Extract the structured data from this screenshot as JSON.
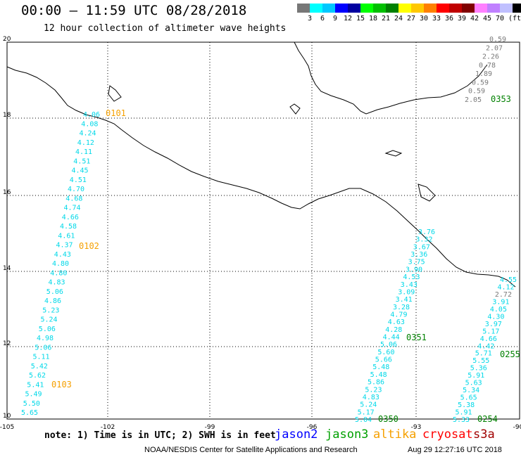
{
  "header": {
    "title": "00:00 – 11:59 UTC 08/28/2018",
    "subtitle": "12 hour collection of altimeter wave heights"
  },
  "legend": {
    "colors": [
      "#777777",
      "#00ffff",
      "#00c8ff",
      "#0000ff",
      "#0000a0",
      "#00ff00",
      "#00c000",
      "#008000",
      "#ffff00",
      "#ffc800",
      "#ff8000",
      "#ff0000",
      "#c00000",
      "#800000",
      "#ff80ff",
      "#c080ff",
      "#c0c0ff",
      "#000000"
    ],
    "labels": [
      "3",
      "6",
      "9",
      "12",
      "15",
      "18",
      "21",
      "24",
      "27",
      "30",
      "33",
      "36",
      "39",
      "42",
      "45",
      "70"
    ],
    "unit": "(ft)"
  },
  "axes": {
    "x_ticks": [
      "-105",
      "-102",
      "-99",
      "-96",
      "-93",
      "-90"
    ],
    "y_ticks": [
      "20",
      "18",
      "16",
      "14",
      "12",
      "10"
    ]
  },
  "tracks": [
    {
      "id": "0101",
      "label": "0101",
      "color": "#f5a000",
      "values": [
        "4.06",
        "4.08",
        "4.24",
        "4.12",
        "4.11",
        "4.51",
        "4.45",
        "4.51",
        "4.70",
        "4.68",
        "4.74",
        "4.66",
        "4.58",
        "4.61",
        "4.37",
        "4.43",
        "4.80",
        "4.80",
        "4.83",
        "5.06",
        "4.86",
        "5.23",
        "5.24",
        "5.06",
        "4.98",
        "5.06",
        "5.11",
        "5.42",
        "5.62",
        "5.41",
        "5.49",
        "5.50",
        "5.65"
      ]
    },
    {
      "id": "0102",
      "label": "0102",
      "color": "#f5a000"
    },
    {
      "id": "0103",
      "label": "0103",
      "color": "#f5a000"
    },
    {
      "id": "0351",
      "label": "0351",
      "color": "#008000",
      "values": [
        "3.76",
        "3.32",
        "3.67",
        "3.36",
        "3.75",
        "3.90",
        "4.53",
        "3.43",
        "3.09",
        "3.41",
        "3.28",
        "4.79",
        "4.63",
        "4.28",
        "4.44",
        "5.06",
        "5.60",
        "5.66",
        "5.48",
        "5.48",
        "5.86",
        "5.23",
        "4.83",
        "5.24",
        "5.17",
        "5.04"
      ]
    },
    {
      "id": "0350",
      "label": "0350",
      "color": "#008000"
    },
    {
      "id": "0255",
      "label": "0255",
      "color": "#008000",
      "values": [
        "4.55",
        "4.12",
        "2.72",
        "3.91",
        "4.05",
        "4.30",
        "3.97",
        "5.17",
        "4.66",
        "4.42",
        "5.71",
        "5.55",
        "5.36",
        "5.91",
        "5.63",
        "5.34",
        "5.65",
        "5.38",
        "5.91",
        "5.33"
      ]
    },
    {
      "id": "0254",
      "label": "0254",
      "color": "#008000"
    },
    {
      "id": "0353",
      "label": "0353",
      "color": "#008000",
      "values": [
        "0.59",
        "2.07",
        "2.26",
        "0.78",
        "1.89",
        "0.59",
        "0.59",
        "2.05"
      ]
    }
  ],
  "note": "note: 1) Time is in UTC; 2) SWH is in feet",
  "satellites": [
    {
      "name": "jason2",
      "color": "#0000ff"
    },
    {
      "name": "jason3",
      "color": "#00a000"
    },
    {
      "name": "altika",
      "color": "#f5a000"
    },
    {
      "name": "cryosat",
      "color": "#ff0000"
    },
    {
      "name": "s3a",
      "color": "#a00000"
    }
  ],
  "footer": {
    "credit": "NOAA/NESDIS Center for Satellite Applications and Research",
    "timestamp": "Aug 29 12:27:16 UTC 2018"
  }
}
